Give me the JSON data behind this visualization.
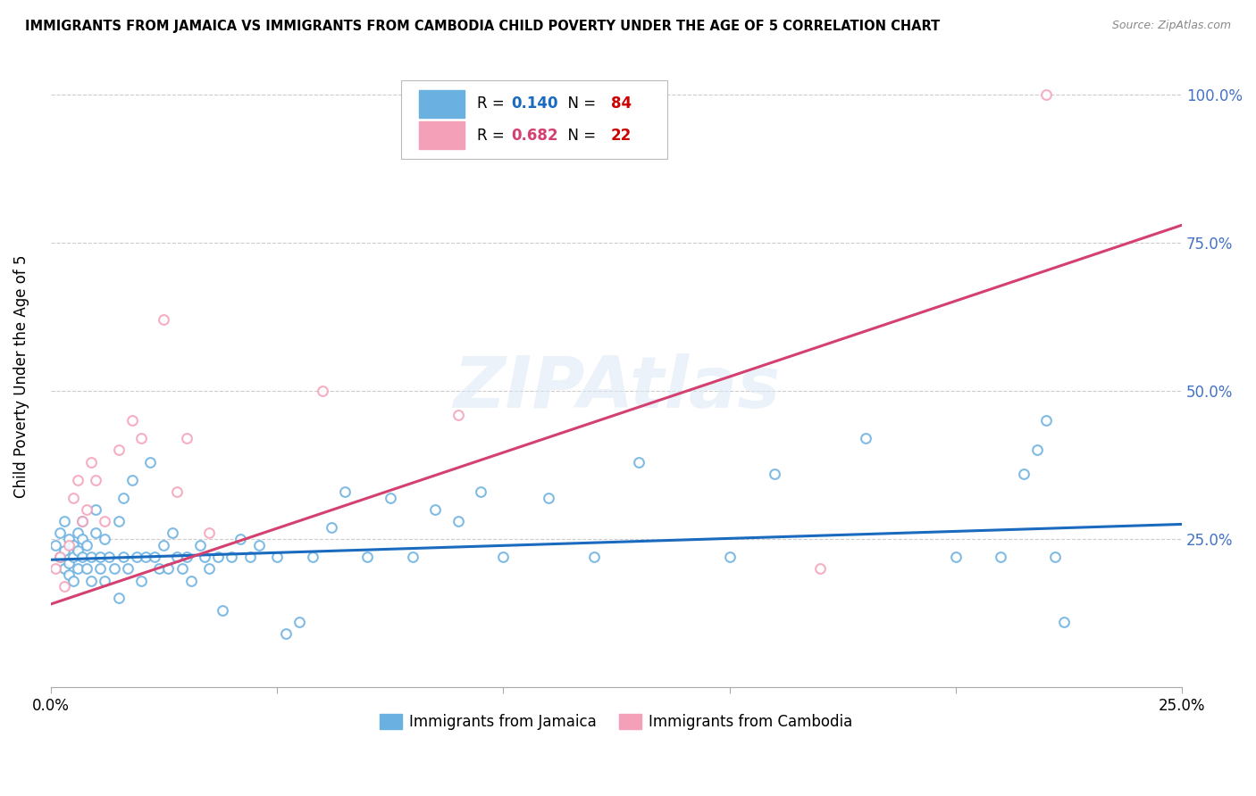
{
  "title": "IMMIGRANTS FROM JAMAICA VS IMMIGRANTS FROM CAMBODIA CHILD POVERTY UNDER THE AGE OF 5 CORRELATION CHART",
  "source": "Source: ZipAtlas.com",
  "ylabel": "Child Poverty Under the Age of 5",
  "xlim": [
    0.0,
    0.25
  ],
  "ylim": [
    0.0,
    1.05
  ],
  "xticks": [
    0.0,
    0.05,
    0.1,
    0.15,
    0.2,
    0.25
  ],
  "yticks": [
    0.0,
    0.25,
    0.5,
    0.75,
    1.0
  ],
  "ytick_labels": [
    "",
    "25.0%",
    "50.0%",
    "75.0%",
    "100.0%"
  ],
  "xtick_labels": [
    "0.0%",
    "",
    "",
    "",
    "",
    "25.0%"
  ],
  "jamaica_R": 0.14,
  "jamaica_N": 84,
  "cambodia_R": 0.682,
  "cambodia_N": 22,
  "jamaica_color": "#6ab0e0",
  "cambodia_color": "#f4a0b8",
  "jamaica_line_color": "#1a6bbf",
  "cambodia_line_color": "#d44070",
  "right_axis_color": "#4472c4",
  "watermark": "ZIPAtlas",
  "jamaica_x": [
    0.001,
    0.002,
    0.002,
    0.003,
    0.003,
    0.003,
    0.004,
    0.004,
    0.004,
    0.005,
    0.005,
    0.005,
    0.006,
    0.006,
    0.006,
    0.007,
    0.007,
    0.007,
    0.008,
    0.008,
    0.009,
    0.009,
    0.01,
    0.01,
    0.011,
    0.011,
    0.012,
    0.012,
    0.013,
    0.014,
    0.015,
    0.015,
    0.016,
    0.016,
    0.017,
    0.018,
    0.019,
    0.02,
    0.021,
    0.022,
    0.023,
    0.024,
    0.025,
    0.026,
    0.027,
    0.028,
    0.029,
    0.03,
    0.031,
    0.033,
    0.034,
    0.035,
    0.037,
    0.038,
    0.04,
    0.042,
    0.044,
    0.046,
    0.05,
    0.052,
    0.055,
    0.058,
    0.062,
    0.065,
    0.07,
    0.075,
    0.08,
    0.085,
    0.09,
    0.095,
    0.1,
    0.11,
    0.12,
    0.13,
    0.15,
    0.16,
    0.18,
    0.2,
    0.21,
    0.215,
    0.218,
    0.22,
    0.222,
    0.224
  ],
  "jamaica_y": [
    0.24,
    0.22,
    0.26,
    0.2,
    0.23,
    0.28,
    0.21,
    0.25,
    0.19,
    0.22,
    0.24,
    0.18,
    0.26,
    0.23,
    0.2,
    0.28,
    0.22,
    0.25,
    0.2,
    0.24,
    0.22,
    0.18,
    0.26,
    0.3,
    0.22,
    0.2,
    0.25,
    0.18,
    0.22,
    0.2,
    0.28,
    0.15,
    0.22,
    0.32,
    0.2,
    0.35,
    0.22,
    0.18,
    0.22,
    0.38,
    0.22,
    0.2,
    0.24,
    0.2,
    0.26,
    0.22,
    0.2,
    0.22,
    0.18,
    0.24,
    0.22,
    0.2,
    0.22,
    0.13,
    0.22,
    0.25,
    0.22,
    0.24,
    0.22,
    0.09,
    0.11,
    0.22,
    0.27,
    0.33,
    0.22,
    0.32,
    0.22,
    0.3,
    0.28,
    0.33,
    0.22,
    0.32,
    0.22,
    0.38,
    0.22,
    0.36,
    0.42,
    0.22,
    0.22,
    0.36,
    0.4,
    0.45,
    0.22,
    0.11
  ],
  "cambodia_x": [
    0.001,
    0.002,
    0.003,
    0.004,
    0.005,
    0.006,
    0.007,
    0.008,
    0.009,
    0.01,
    0.012,
    0.015,
    0.018,
    0.02,
    0.025,
    0.028,
    0.03,
    0.035,
    0.06,
    0.09,
    0.17,
    0.22
  ],
  "cambodia_y": [
    0.2,
    0.22,
    0.17,
    0.24,
    0.32,
    0.35,
    0.28,
    0.3,
    0.38,
    0.35,
    0.28,
    0.4,
    0.45,
    0.42,
    0.62,
    0.33,
    0.42,
    0.26,
    0.5,
    0.46,
    0.2,
    1.0
  ],
  "jamaica_line_x": [
    0.0,
    0.25
  ],
  "jamaica_line_y": [
    0.215,
    0.275
  ],
  "cambodia_line_x": [
    0.0,
    0.25
  ],
  "cambodia_line_y": [
    0.14,
    0.78
  ]
}
